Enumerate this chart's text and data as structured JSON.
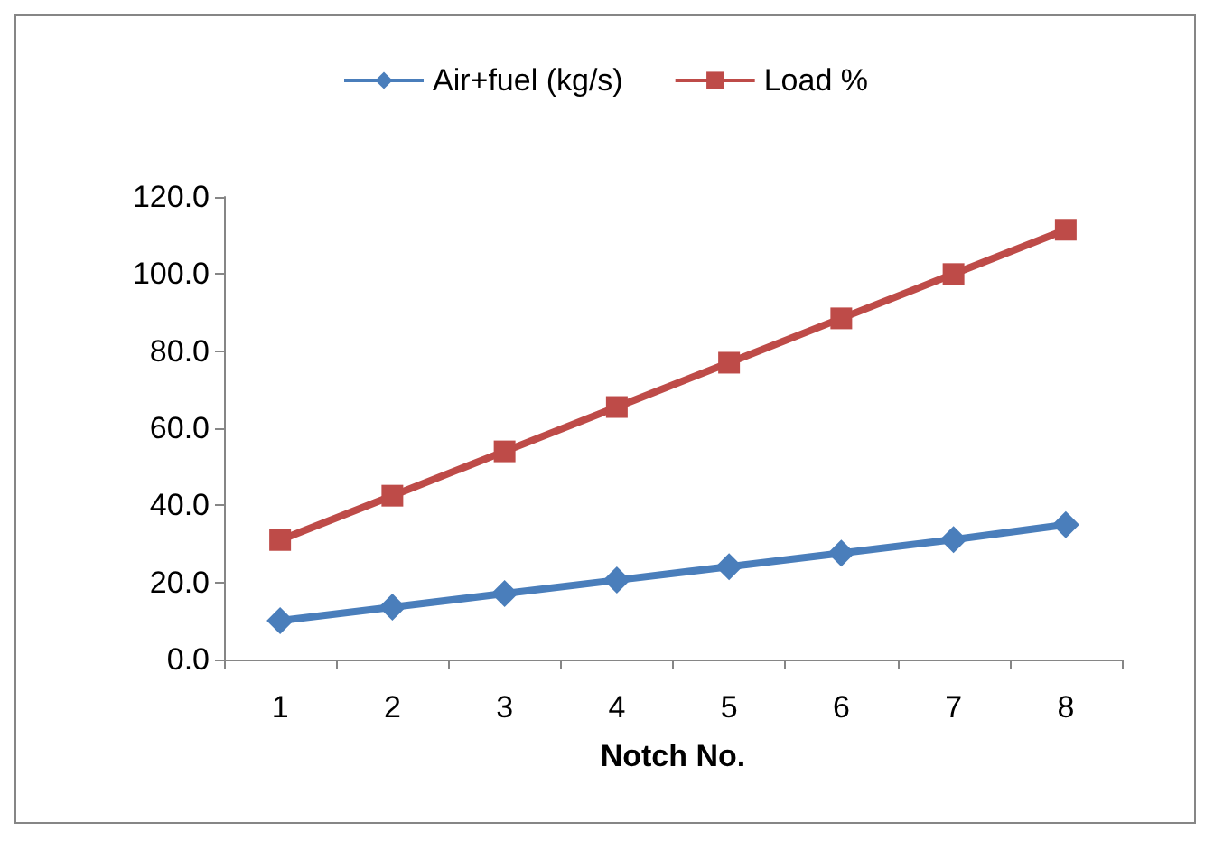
{
  "chart_data": {
    "type": "line",
    "xlabel": "Notch No.",
    "categories": [
      "1",
      "2",
      "3",
      "4",
      "5",
      "6",
      "7",
      "8"
    ],
    "series": [
      {
        "name": "Air+fuel (kg/s)",
        "color": "#4a7ebb",
        "marker": "diamond",
        "values": [
          10.1,
          13.6,
          17.1,
          20.6,
          24.1,
          27.6,
          31.1,
          35.0
        ]
      },
      {
        "name": "Load %",
        "color": "#be4b48",
        "marker": "square",
        "values": [
          31.0,
          42.5,
          54.0,
          65.5,
          77.0,
          88.5,
          100.0,
          111.5
        ]
      }
    ],
    "ylim": [
      0,
      120
    ],
    "yticks": [
      {
        "value": 0,
        "label": "0.0"
      },
      {
        "value": 20,
        "label": "20.0"
      },
      {
        "value": 40,
        "label": "40.0"
      },
      {
        "value": 60,
        "label": "60.0"
      },
      {
        "value": 80,
        "label": "80.0"
      },
      {
        "value": 100,
        "label": "100.0"
      },
      {
        "value": 120,
        "label": "120.0"
      }
    ],
    "grid": false,
    "legend": "top"
  }
}
